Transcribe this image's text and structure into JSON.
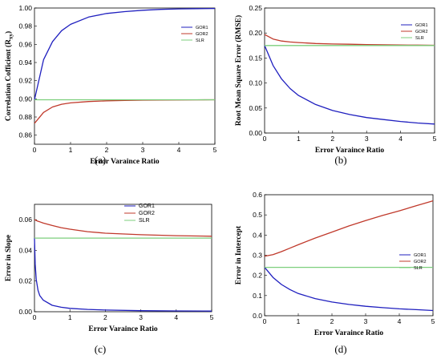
{
  "chart_data": [
    {
      "type": "line",
      "caption": "(a)",
      "xlabel": "Error Varaince Ratio",
      "ylabel": "Correlation Cofficient (R",
      "ylabel_sub": "xy",
      "ylabel_end": ")",
      "xlim": [
        0,
        5
      ],
      "ylim": [
        0.85,
        1.0
      ],
      "xticks": [
        0,
        1,
        2,
        3,
        4,
        5
      ],
      "yticks": [
        0.86,
        0.88,
        0.9,
        0.92,
        0.94,
        0.96,
        0.98,
        1.0
      ],
      "ytick_labels": [
        "0.86",
        "0.88",
        "0.90",
        "0.92",
        "0.94",
        "0.96",
        "0.98",
        "1.00"
      ],
      "legend_position": "top-right",
      "x": [
        0,
        0.25,
        0.5,
        0.75,
        1,
        1.5,
        2,
        2.5,
        3,
        3.5,
        4,
        4.5,
        5
      ],
      "series": [
        {
          "name": "GOR1",
          "color": "#1f1fbf",
          "values": [
            0.899,
            0.943,
            0.963,
            0.975,
            0.982,
            0.99,
            0.994,
            0.996,
            0.9975,
            0.9985,
            0.999,
            0.9993,
            0.9995
          ]
        },
        {
          "name": "GOR2",
          "color": "#c0392b",
          "values": [
            0.873,
            0.885,
            0.891,
            0.894,
            0.8955,
            0.897,
            0.8978,
            0.8982,
            0.8985,
            0.8987,
            0.8988,
            0.8989,
            0.899
          ]
        },
        {
          "name": "SLR",
          "color": "#7ccf7c",
          "values": [
            0.899,
            0.899,
            0.899,
            0.899,
            0.899,
            0.899,
            0.899,
            0.899,
            0.899,
            0.899,
            0.899,
            0.899,
            0.899
          ]
        }
      ]
    },
    {
      "type": "line",
      "caption": "(b)",
      "xlabel": "Error Varaince Ratio",
      "ylabel": "Root Mean Square Error (RMSE)",
      "xlim": [
        0,
        5
      ],
      "ylim": [
        0,
        0.25
      ],
      "xticks": [
        0,
        1,
        2,
        3,
        4,
        5
      ],
      "yticks": [
        0,
        0.05,
        0.1,
        0.15,
        0.2,
        0.25
      ],
      "ytick_labels": [
        "0.00",
        "0.05",
        "0.10",
        "0.15",
        "0.20",
        "0.25"
      ],
      "legend_position": "top-right",
      "x": [
        0,
        0.25,
        0.5,
        0.75,
        1,
        1.5,
        2,
        2.5,
        3,
        3.5,
        4,
        4.5,
        5
      ],
      "series": [
        {
          "name": "GOR1",
          "color": "#1f1fbf",
          "values": [
            0.175,
            0.135,
            0.108,
            0.089,
            0.075,
            0.057,
            0.045,
            0.037,
            0.031,
            0.027,
            0.023,
            0.02,
            0.018
          ]
        },
        {
          "name": "GOR2",
          "color": "#c0392b",
          "values": [
            0.197,
            0.188,
            0.184,
            0.182,
            0.181,
            0.179,
            0.178,
            0.1775,
            0.177,
            0.1765,
            0.176,
            0.1758,
            0.1755
          ]
        },
        {
          "name": "SLR",
          "color": "#7ccf7c",
          "values": [
            0.175,
            0.175,
            0.175,
            0.175,
            0.175,
            0.175,
            0.175,
            0.175,
            0.175,
            0.175,
            0.175,
            0.175,
            0.175
          ]
        }
      ]
    },
    {
      "type": "line",
      "caption": "(c)",
      "xlabel": "Error Varaince Ratio",
      "ylabel": "Error in Slope",
      "xlim": [
        0,
        5
      ],
      "ylim": [
        0,
        0.07
      ],
      "xticks": [
        0,
        1,
        2,
        3,
        4,
        5
      ],
      "yticks": [
        0,
        0.02,
        0.04,
        0.06
      ],
      "ytick_labels": [
        "0.00",
        "0.02",
        "0.04",
        "0.06"
      ],
      "legend_position": "top-right",
      "x": [
        0,
        0.02,
        0.05,
        0.1,
        0.15,
        0.25,
        0.5,
        0.75,
        1,
        1.5,
        2,
        3,
        4,
        5
      ],
      "series": [
        {
          "name": "GOR1",
          "color": "#1f1fbf",
          "values": [
            0.048,
            0.031,
            0.021,
            0.014,
            0.0105,
            0.0075,
            0.0042,
            0.0029,
            0.0022,
            0.0015,
            0.0011,
            0.0007,
            0.0005,
            0.0004
          ]
        },
        {
          "name": "GOR2",
          "color": "#c0392b",
          "values": [
            0.06,
            0.0598,
            0.0595,
            0.059,
            0.0586,
            0.0578,
            0.0562,
            0.0548,
            0.0538,
            0.0522,
            0.0512,
            0.0502,
            0.0496,
            0.0492
          ]
        },
        {
          "name": "SLR",
          "color": "#7ccf7c",
          "values": [
            0.048,
            0.048,
            0.048,
            0.048,
            0.048,
            0.048,
            0.048,
            0.048,
            0.048,
            0.048,
            0.048,
            0.048,
            0.048,
            0.048
          ]
        }
      ]
    },
    {
      "type": "line",
      "caption": "(d)",
      "xlabel": "Error Varaince Ratio",
      "ylabel": "Error in Intercept",
      "xlim": [
        0,
        5
      ],
      "ylim": [
        0,
        0.6
      ],
      "xticks": [
        0,
        1,
        2,
        3,
        4,
        5
      ],
      "yticks": [
        0,
        0.1,
        0.2,
        0.3,
        0.4,
        0.5,
        0.6
      ],
      "ytick_labels": [
        "0.0",
        "0.1",
        "0.2",
        "0.3",
        "0.4",
        "0.5",
        "0.6"
      ],
      "legend_position": "top-right",
      "x": [
        0,
        0.25,
        0.5,
        0.75,
        1,
        1.5,
        2,
        2.5,
        3,
        3.5,
        4,
        4.5,
        5
      ],
      "series": [
        {
          "name": "GOR1",
          "color": "#1f1fbf",
          "values": [
            0.24,
            0.19,
            0.155,
            0.13,
            0.11,
            0.085,
            0.068,
            0.056,
            0.047,
            0.04,
            0.034,
            0.03,
            0.026
          ]
        },
        {
          "name": "GOR2",
          "color": "#c0392b",
          "values": [
            0.295,
            0.303,
            0.318,
            0.335,
            0.352,
            0.385,
            0.415,
            0.445,
            0.472,
            0.497,
            0.52,
            0.545,
            0.57
          ]
        },
        {
          "name": "SLR",
          "color": "#7ccf7c",
          "values": [
            0.24,
            0.24,
            0.24,
            0.24,
            0.24,
            0.24,
            0.24,
            0.24,
            0.24,
            0.24,
            0.24,
            0.24,
            0.24
          ]
        }
      ]
    }
  ]
}
